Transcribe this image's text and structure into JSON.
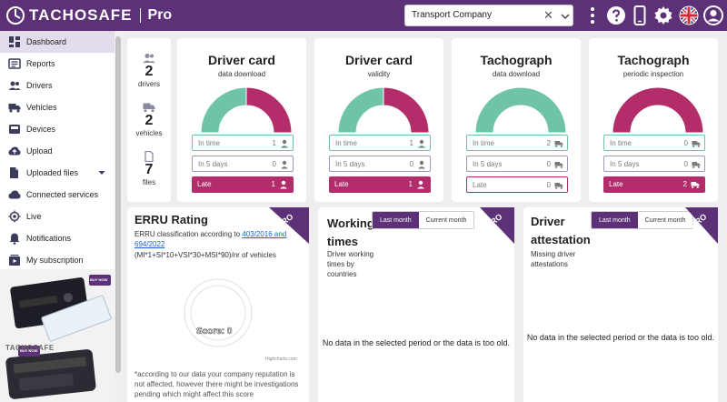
{
  "header": {
    "brand": "TACHOSAFE",
    "edition": "Pro",
    "company_select": {
      "value": "Transport Company"
    },
    "colors": {
      "brand": "#5c3177",
      "green": "#6fc3a8",
      "red": "#b22d69",
      "lilac": "#a995c4"
    }
  },
  "sidebar": {
    "items": [
      {
        "label": "Dashboard",
        "icon": "dashboard-icon"
      },
      {
        "label": "Reports",
        "icon": "reports-icon"
      },
      {
        "label": "Drivers",
        "icon": "drivers-icon"
      },
      {
        "label": "Vehicles",
        "icon": "truck-icon"
      },
      {
        "label": "Devices",
        "icon": "device-icon"
      },
      {
        "label": "Upload",
        "icon": "cloud-upload-icon"
      },
      {
        "label": "Uploaded files",
        "icon": "folder-icon"
      },
      {
        "label": "Connected services",
        "icon": "cloud-icon"
      },
      {
        "label": "Live",
        "icon": "target-icon"
      },
      {
        "label": "Notifications",
        "icon": "bell-icon"
      },
      {
        "label": "My subscription",
        "icon": "subscription-icon"
      }
    ]
  },
  "summary": {
    "drivers": {
      "count": "2",
      "label": "drivers"
    },
    "vehicles": {
      "count": "2",
      "label": "vehicles"
    },
    "files": {
      "count": "7",
      "label": "files"
    }
  },
  "cards": [
    {
      "title": "Driver card",
      "subtitle": "data download",
      "donut": {
        "green": 1,
        "red": 1
      },
      "rows": [
        {
          "label": "In time",
          "value": "1"
        },
        {
          "label": "In 5 days",
          "value": "0"
        },
        {
          "label": "Late",
          "value": "1"
        }
      ]
    },
    {
      "title": "Driver card",
      "subtitle": "validity",
      "donut": {
        "green": 1,
        "red": 1
      },
      "rows": [
        {
          "label": "In time",
          "value": "1"
        },
        {
          "label": "In 5 days",
          "value": "0"
        },
        {
          "label": "Late",
          "value": "1"
        }
      ]
    },
    {
      "title": "Tachograph",
      "subtitle": "data download",
      "donut": {
        "green": 2,
        "red": 0
      },
      "rows": [
        {
          "label": "In time",
          "value": "2"
        },
        {
          "label": "In 5 days",
          "value": "0"
        },
        {
          "label": "Late",
          "value": "0"
        }
      ]
    },
    {
      "title": "Tachograph",
      "subtitle": "periodic inspection",
      "donut": {
        "green": 0,
        "red": 2
      },
      "rows": [
        {
          "label": "In time",
          "value": "0"
        },
        {
          "label": "In 5 days",
          "value": "0"
        },
        {
          "label": "Late",
          "value": "2"
        }
      ]
    }
  ],
  "erru": {
    "title": "ERRU Rating",
    "badge": "PRO",
    "desc_prefix": "ERRU classification according to",
    "link_line1": "403/2016 and",
    "link_line2": "694/2022",
    "formula": "(MI*1+SI*10+VSI*30+MSI*90)/nr of vehicles",
    "score_label": "Score: 0",
    "credit": "Highcharts.com",
    "footnote_line1": "*according to our data your company reputation is",
    "footnote_line2": "not affected, however there might be investigations",
    "footnote_line3": "pending which might affect this score"
  },
  "working_times": {
    "title_line1": "Working",
    "title_line2": "times",
    "badge": "PRO",
    "toggle_on": "Last month",
    "toggle_off": "Current month",
    "desc_line1": "Driver working",
    "desc_line2": "times by",
    "desc_line3": "countries",
    "no_data": "No data in the selected period or the data is too old."
  },
  "driver_attestation": {
    "title_line1": "Driver",
    "title_line2": "attestation",
    "badge": "PRO",
    "toggle_on": "Last month",
    "toggle_off": "Current month",
    "desc_line1": "Missing driver",
    "desc_line2": "attestations",
    "no_data": "No data in the selected period or the data is too old."
  },
  "promo": {
    "brand": "TACHOSAFE",
    "badge": "BUY NOW"
  }
}
